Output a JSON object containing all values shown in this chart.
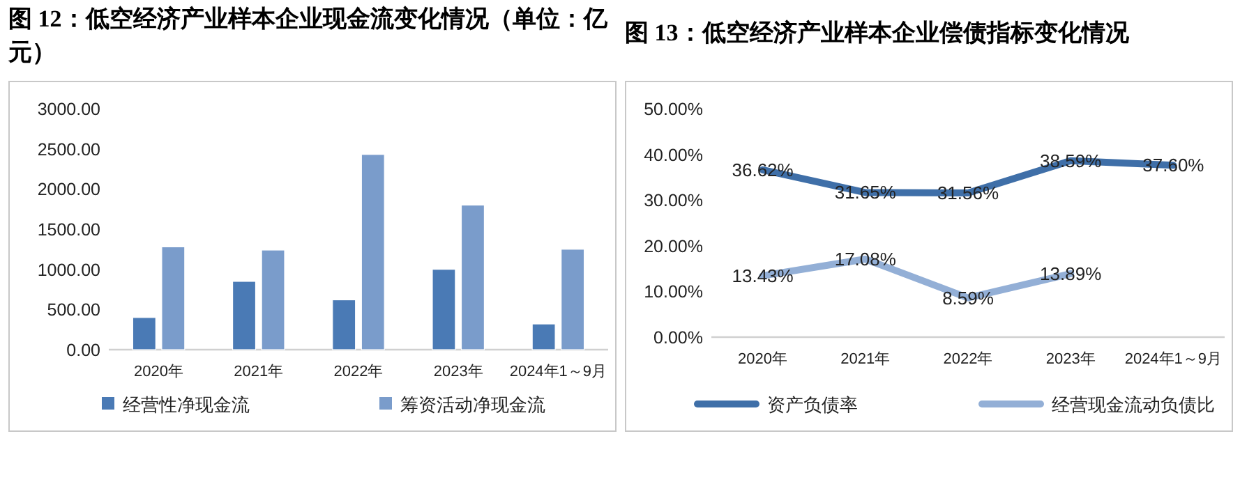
{
  "chart_data": [
    {
      "type": "bar",
      "title": "图 12：低空经济产业样本企业现金流变化情况（单位：亿元）",
      "categories": [
        "2020年",
        "2021年",
        "2022年",
        "2023年",
        "2024年1～9月"
      ],
      "series": [
        {
          "name": "经营性净现金流",
          "color": "#4a7ab5",
          "values": [
            400,
            850,
            620,
            1000,
            320
          ]
        },
        {
          "name": "筹资活动净现金流",
          "color": "#7a9ccb",
          "values": [
            1280,
            1240,
            2430,
            1800,
            1250
          ]
        }
      ],
      "ylim": [
        0,
        3000
      ],
      "yticks": [
        {
          "value": 0,
          "label": "0.00"
        },
        {
          "value": 500,
          "label": "500.00"
        },
        {
          "value": 1000,
          "label": "1000.00"
        },
        {
          "value": 1500,
          "label": "1500.00"
        },
        {
          "value": 2000,
          "label": "2000.00"
        },
        {
          "value": 2500,
          "label": "2500.00"
        },
        {
          "value": 3000,
          "label": "3000.00"
        }
      ],
      "legend": "bottom"
    },
    {
      "type": "line",
      "title": "图 13：低空经济产业样本企业偿债指标变化情况",
      "categories": [
        "2020年",
        "2021年",
        "2022年",
        "2023年",
        "2024年1～9月"
      ],
      "series": [
        {
          "name": "资产负债率",
          "color": "#3f6fa8",
          "values": [
            36.62,
            31.65,
            31.56,
            38.59,
            37.6
          ],
          "value_labels": [
            "36.62%",
            "31.65%",
            "31.56%",
            "38.59%",
            "37.60%"
          ]
        },
        {
          "name": "经营现金流动负债比",
          "color": "#93afd6",
          "values": [
            13.43,
            17.08,
            8.59,
            13.89,
            null
          ],
          "value_labels": [
            "13.43%",
            "17.08%",
            "8.59%",
            "13.89%",
            null
          ]
        }
      ],
      "ylim": [
        0,
        50
      ],
      "yticks": [
        {
          "value": 0,
          "label": "0.00%"
        },
        {
          "value": 10,
          "label": "10.00%"
        },
        {
          "value": 20,
          "label": "20.00%"
        },
        {
          "value": 30,
          "label": "30.00%"
        },
        {
          "value": 40,
          "label": "40.00%"
        },
        {
          "value": 50,
          "label": "50.00%"
        }
      ],
      "legend": "bottom"
    }
  ]
}
